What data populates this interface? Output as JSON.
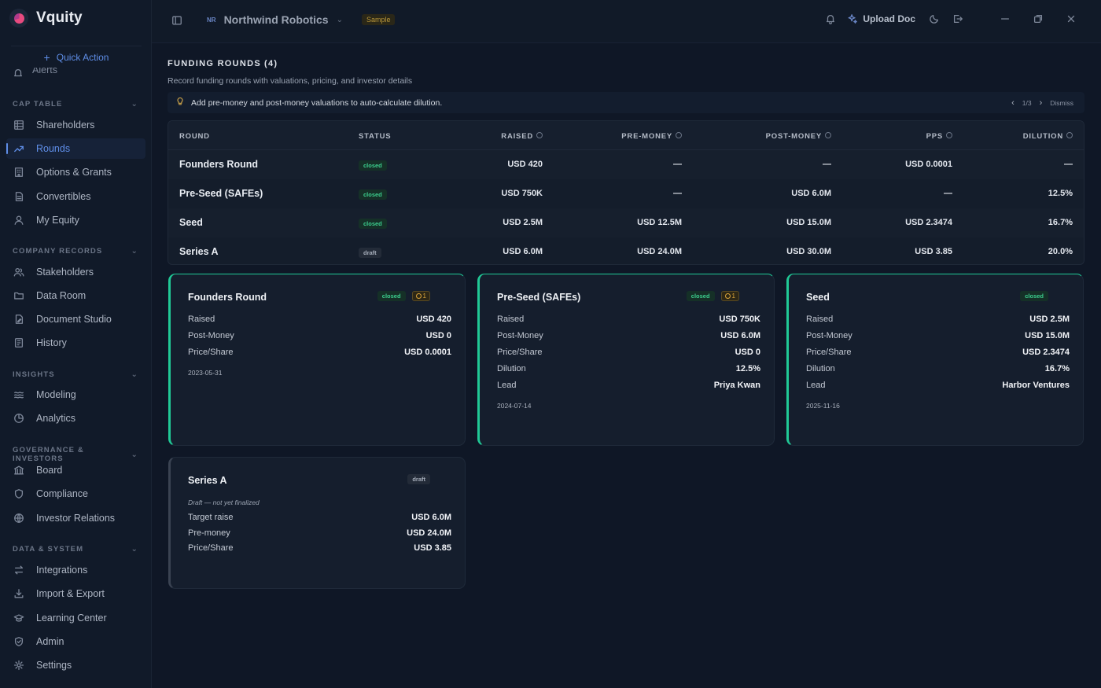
{
  "app": {
    "name": "Vquity"
  },
  "sidebar": {
    "quick_action": "Quick Action",
    "partial_item": "Alerts",
    "sections": {
      "cap_table": "CAP TABLE",
      "company_records": "COMPANY RECORDS",
      "insights": "INSIGHTS",
      "governance": "GOVERNANCE & INVESTORS",
      "data_system": "DATA & SYSTEM"
    },
    "items": {
      "shareholders": "Shareholders",
      "rounds": "Rounds",
      "options": "Options & Grants",
      "convertibles": "Convertibles",
      "my_equity": "My Equity",
      "stakeholders": "Stakeholders",
      "data_room": "Data Room",
      "document_studio": "Document Studio",
      "history": "History",
      "modeling": "Modeling",
      "analytics": "Analytics",
      "board": "Board",
      "compliance": "Compliance",
      "investor_relations": "Investor Relations",
      "integrations": "Integrations",
      "import_export": "Import & Export",
      "learning_center": "Learning Center",
      "admin": "Admin",
      "settings": "Settings"
    }
  },
  "topbar": {
    "company_initials": "NR",
    "company_name": "Northwind Robotics",
    "sample_badge": "Sample",
    "upload_label": "Upload Doc"
  },
  "page": {
    "title": "FUNDING ROUNDS",
    "count": "(4)",
    "subtitle": "Record funding rounds with valuations, pricing, and investor details"
  },
  "tip": {
    "text": "Add pre-money and post-money valuations to auto-calculate dilution.",
    "pager": "1/3",
    "dismiss": "Dismiss"
  },
  "table": {
    "headers": {
      "round": "ROUND",
      "status": "STATUS",
      "raised": "RAISED",
      "pre_money": "PRE-MONEY",
      "post_money": "POST-MONEY",
      "pps": "PPS",
      "dilution": "DILUTION"
    },
    "rows": [
      {
        "round": "Founders Round",
        "status": "closed",
        "raised": "USD 420",
        "pre_money": "—",
        "post_money": "—",
        "pps": "USD 0.0001",
        "dilution": "—"
      },
      {
        "round": "Pre-Seed (SAFEs)",
        "status": "closed",
        "raised": "USD 750K",
        "pre_money": "—",
        "post_money": "USD 6.0M",
        "pps": "—",
        "dilution": "12.5%"
      },
      {
        "round": "Seed",
        "status": "closed",
        "raised": "USD 2.5M",
        "pre_money": "USD 12.5M",
        "post_money": "USD 15.0M",
        "pps": "USD 2.3474",
        "dilution": "16.7%"
      },
      {
        "round": "Series A",
        "status": "draft",
        "raised": "USD 6.0M",
        "pre_money": "USD 24.0M",
        "post_money": "USD 30.0M",
        "pps": "USD 3.85",
        "dilution": "20.0%"
      }
    ]
  },
  "cards": [
    {
      "title": "Founders Round",
      "status": "closed",
      "alert": "1",
      "fields": [
        {
          "k": "Raised",
          "v": "USD 420"
        },
        {
          "k": "Post-Money",
          "v": "USD 0"
        },
        {
          "k": "Price/Share",
          "v": "USD 0.0001"
        }
      ],
      "date": "2023-05-31"
    },
    {
      "title": "Pre-Seed (SAFEs)",
      "status": "closed",
      "alert": "1",
      "fields": [
        {
          "k": "Raised",
          "v": "USD 750K"
        },
        {
          "k": "Post-Money",
          "v": "USD 6.0M"
        },
        {
          "k": "Price/Share",
          "v": "USD 0"
        },
        {
          "k": "Dilution",
          "v": "12.5%"
        },
        {
          "k": "Lead",
          "v": "Priya Kwan"
        }
      ],
      "date": "2024-07-14"
    },
    {
      "title": "Seed",
      "status": "closed",
      "fields": [
        {
          "k": "Raised",
          "v": "USD 2.5M"
        },
        {
          "k": "Post-Money",
          "v": "USD 15.0M"
        },
        {
          "k": "Price/Share",
          "v": "USD 2.3474"
        },
        {
          "k": "Dilution",
          "v": "16.7%"
        },
        {
          "k": "Lead",
          "v": "Harbor Ventures"
        }
      ],
      "date": "2025-11-16"
    },
    {
      "title": "Series A",
      "status": "draft",
      "note": "Draft — not yet finalized",
      "fields": [
        {
          "k": "Target raise",
          "v": "USD 6.0M"
        },
        {
          "k": "Pre-money",
          "v": "USD 24.0M"
        },
        {
          "k": "Price/Share",
          "v": "USD 3.85"
        }
      ]
    }
  ],
  "colors": {
    "accent": "#5f8ee8",
    "closed": "#20c996",
    "warning": "#d9a43b",
    "background": "#0f1726"
  }
}
